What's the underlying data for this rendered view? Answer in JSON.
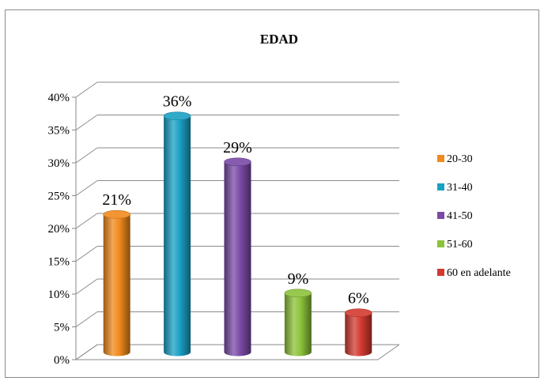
{
  "chart_data": {
    "type": "bar",
    "title": "EDAD",
    "categories": [
      "20-30",
      "31-40",
      "41-50",
      "51-60",
      "60 en adelante"
    ],
    "values": [
      21,
      36,
      29,
      9,
      6
    ],
    "data_labels": [
      "21%",
      "36%",
      "29%",
      "9%",
      "6%"
    ],
    "colors": [
      "#f08a1c",
      "#1aa0c4",
      "#7a4aa6",
      "#8cc23a",
      "#d23a30"
    ],
    "ylim": [
      0,
      40
    ],
    "yticks": [
      0,
      5,
      10,
      15,
      20,
      25,
      30,
      35,
      40
    ],
    "ytick_labels": [
      "0%",
      "5%",
      "10%",
      "15%",
      "20%",
      "25%",
      "30%",
      "35%",
      "40%"
    ],
    "xlabel": "",
    "ylabel": "",
    "grid": true,
    "legend": {
      "placement": "right",
      "entries": [
        "20-30",
        "31-40",
        "41-50",
        "51-60",
        "60 en adelante"
      ]
    },
    "style": "3d-cylinder"
  }
}
